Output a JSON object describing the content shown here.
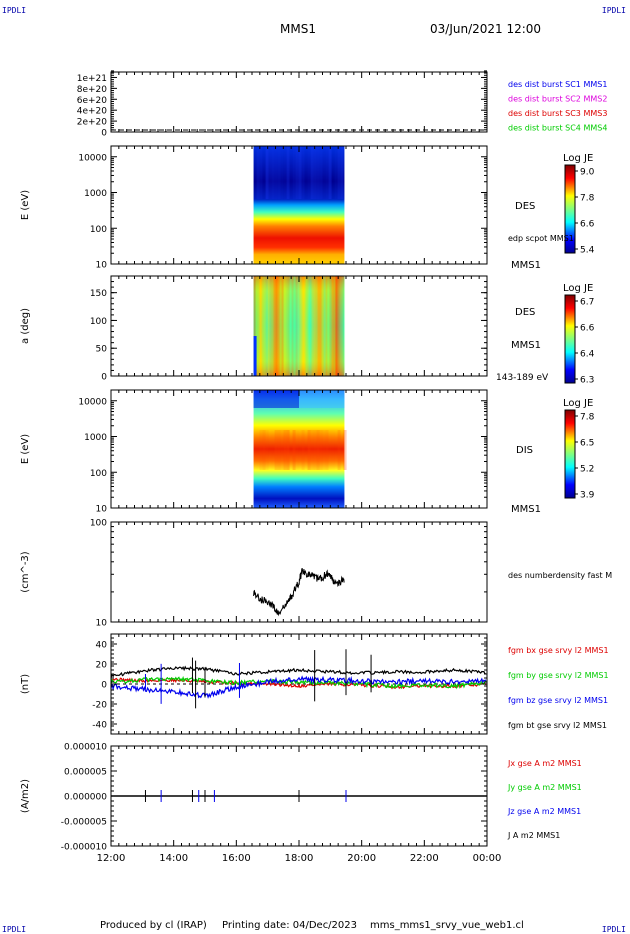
{
  "header": {
    "corner_tl": "IPDLI",
    "corner_tr": "IPDLI",
    "corner_bl": "IPDLI",
    "corner_br": "IPDLI",
    "title": "MMS1",
    "datetime": "03/Jun/2021 12:00"
  },
  "footer": {
    "produced_by": "Produced by cl (IRAP)",
    "printing_date": "Printing date: 04/Dec/2023",
    "filename": "mms_mms1_srvy_vue_web1.cl"
  },
  "colors": {
    "series_red": "#dd0000",
    "series_green": "#00cc00",
    "series_blue": "#0000ee",
    "series_magenta": "#dd00dd",
    "series_black": "#000000"
  },
  "chart_data": [
    {
      "type": "line",
      "panel": "burst",
      "ytick_labels": [
        "1e+21",
        "8e+20",
        "6e+20",
        "4e+20",
        "2e+20",
        "0"
      ],
      "ytick_values": [
        1e+21,
        8e+20,
        6e+20,
        4e+20,
        2e+20,
        0
      ],
      "ylim": [
        0,
        1.1e+21
      ],
      "legend": [
        {
          "label": "des dist burst SC1 MMS1",
          "color": "#0000ee"
        },
        {
          "label": "des dist burst SC2 MMS2",
          "color": "#dd00dd"
        },
        {
          "label": "des dist burst SC3 MMS3",
          "color": "#dd0000"
        },
        {
          "label": "des dist burst SC4 MMS4",
          "color": "#00cc00"
        }
      ]
    },
    {
      "type": "heatmap",
      "panel": "des_energy",
      "ylabel": "E (eV)",
      "yscale": "log",
      "ylim": [
        10,
        20000
      ],
      "ytick_labels": [
        "10000",
        "1000",
        "100",
        "10"
      ],
      "ytick_values": [
        10000,
        1000,
        100,
        10
      ],
      "x_data_range_hours": [
        16.55,
        19.45
      ],
      "colorbar": {
        "title": "Log JE",
        "tick_labels": [
          "9.0",
          "7.8",
          "6.6",
          "5.4"
        ],
        "range": [
          5.4,
          9.0
        ]
      },
      "instrument": "DES",
      "spacecraft": "MMS1",
      "annotation": "edp scpot MMS1"
    },
    {
      "type": "heatmap",
      "panel": "des_pitch",
      "ylabel": "a (deg)",
      "ylim": [
        0,
        180
      ],
      "ytick_labels": [
        "150",
        "100",
        "50",
        "0"
      ],
      "ytick_values": [
        150,
        100,
        50,
        0
      ],
      "x_data_range_hours": [
        16.55,
        19.45
      ],
      "colorbar": {
        "title": "Log JE",
        "tick_labels": [
          "6.7",
          "6.6",
          "6.4",
          "6.3"
        ],
        "range": [
          6.3,
          6.7
        ]
      },
      "instrument": "DES",
      "spacecraft": "MMS1",
      "energy_band": "143-189 eV"
    },
    {
      "type": "heatmap",
      "panel": "dis_energy",
      "ylabel": "E (eV)",
      "yscale": "log",
      "ylim": [
        10,
        20000
      ],
      "ytick_labels": [
        "10000",
        "1000",
        "100",
        "10"
      ],
      "ytick_values": [
        10000,
        1000,
        100,
        10
      ],
      "x_data_range_hours": [
        16.55,
        19.45
      ],
      "colorbar": {
        "title": "Log JE",
        "tick_labels": [
          "7.8",
          "6.5",
          "5.2",
          "3.9"
        ],
        "range": [
          3.9,
          7.8
        ]
      },
      "instrument": "DIS",
      "spacecraft": "MMS1"
    },
    {
      "type": "line",
      "panel": "density",
      "ylabel": "(cm^-3)",
      "yscale": "log",
      "ylim": [
        10,
        100
      ],
      "ytick_labels": [
        "100",
        "10"
      ],
      "ytick_values": [
        100,
        10
      ],
      "legend": [
        {
          "label": "des numberdensity fast M",
          "color": "#000000"
        }
      ],
      "x": [
        16.55,
        16.75,
        17.0,
        17.2,
        17.35,
        17.6,
        17.8,
        18.0,
        18.1,
        18.3,
        18.5,
        18.7,
        18.9,
        19.1,
        19.3,
        19.45
      ],
      "y": [
        20,
        17,
        16,
        14,
        12,
        15,
        19,
        25,
        33,
        30,
        28,
        27,
        31,
        26,
        25,
        27
      ]
    },
    {
      "type": "line",
      "panel": "fgm",
      "ylabel": "(nT)",
      "ylim": [
        -50,
        50
      ],
      "ytick_labels": [
        "40",
        "20",
        "0",
        "-20",
        "-40"
      ],
      "ytick_values": [
        40,
        20,
        0,
        -20,
        -40
      ],
      "series": [
        {
          "name": "fgm bx gse srvy l2 MMS1",
          "color": "#dd0000",
          "x": [
            12,
            13,
            14,
            15,
            16,
            17,
            18,
            19,
            20,
            21,
            22,
            23,
            24
          ],
          "values": [
            5,
            3,
            4,
            2,
            1,
            0,
            -2,
            0,
            -1,
            -3,
            -2,
            -2,
            0
          ]
        },
        {
          "name": "fgm by gse srvy l2 MMS1",
          "color": "#00cc00",
          "x": [
            12,
            13,
            14,
            15,
            16,
            17,
            18,
            19,
            20,
            21,
            22,
            23,
            24
          ],
          "values": [
            2,
            4,
            6,
            3,
            1,
            3,
            2,
            1,
            0,
            -2,
            -1,
            -2,
            2
          ]
        },
        {
          "name": "fgm bz gse srvy l2 MMS1",
          "color": "#0000ee",
          "x": [
            12,
            13,
            14,
            15,
            16,
            17,
            18,
            19,
            20,
            21,
            22,
            23,
            24
          ],
          "values": [
            -2,
            -5,
            -8,
            -12,
            -3,
            2,
            5,
            4,
            3,
            2,
            3,
            2,
            4
          ]
        },
        {
          "name": "fgm bt gse srvy l2 MMS1",
          "color": "#000000",
          "x": [
            12,
            13,
            14,
            15,
            16,
            17,
            18,
            19,
            20,
            21,
            22,
            23,
            24
          ],
          "values": [
            8,
            13,
            16,
            15,
            10,
            12,
            14,
            12,
            11,
            12,
            12,
            14,
            11
          ]
        }
      ]
    },
    {
      "type": "line",
      "panel": "current",
      "ylabel": "(A/m2)",
      "ylim": [
        -1e-05,
        1e-05
      ],
      "ytick_labels": [
        "0.000010",
        "0.000005",
        "0.000000",
        "-0.000005",
        "-0.000010"
      ],
      "ytick_values": [
        1e-05,
        5e-06,
        0,
        -5e-06,
        -1e-05
      ],
      "xlim": [
        12,
        24
      ],
      "xtick_labels": [
        "12:00",
        "14:00",
        "16:00",
        "18:00",
        "20:00",
        "22:00",
        "00:00"
      ],
      "xtick_values": [
        12,
        14,
        16,
        18,
        20,
        22,
        24
      ],
      "legend": [
        {
          "label": "Jx gse A m2 MMS1",
          "color": "#dd0000"
        },
        {
          "label": "Jy gse A m2 MMS1",
          "color": "#00cc00"
        },
        {
          "label": "Jz gse A m2 MMS1",
          "color": "#0000ee"
        },
        {
          "label": "J A m2 MMS1",
          "color": "#000000"
        }
      ]
    }
  ]
}
